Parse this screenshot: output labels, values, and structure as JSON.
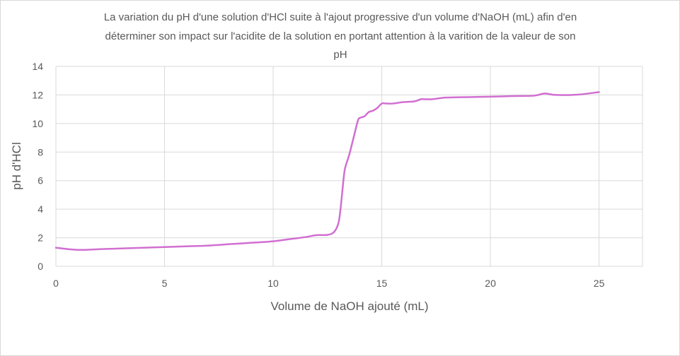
{
  "chart_data": {
    "type": "line",
    "title": [
      "La  variation du pH d'une solution d'HCl suite à l'ajout progressive d'un volume d'NaOH (mL)  afin d'en",
      "déterminer son impact sur l'acidite  de la solution en portant attention à la varition de la valeur de son",
      "pH"
    ],
    "xlabel": "Volume de NaOH ajouté (mL)",
    "ylabel": "pH  d'HCl",
    "xlim": [
      0,
      27
    ],
    "ylim": [
      0,
      14
    ],
    "x_ticks": [
      0,
      5,
      10,
      15,
      20,
      25
    ],
    "y_ticks": [
      0,
      2,
      4,
      6,
      8,
      10,
      12,
      14
    ],
    "grid": true,
    "line_color": "#d16fd1",
    "series": [
      {
        "x": [
          0,
          1,
          2,
          3,
          4,
          5,
          6,
          7,
          8,
          9,
          10,
          10.5,
          11,
          11.5,
          12,
          12.5,
          12.8,
          13,
          13.1,
          13.2,
          13.3,
          13.5,
          13.7,
          13.9,
          14,
          14.2,
          14.4,
          14.6,
          14.8,
          15,
          15.2,
          15.5,
          16,
          16.5,
          16.8,
          17,
          17.3,
          17.8,
          18,
          19,
          20,
          21,
          22,
          22.5,
          23,
          24,
          25
        ],
        "y": [
          1.3,
          1.15,
          1.2,
          1.25,
          1.3,
          1.35,
          1.4,
          1.45,
          1.55,
          1.65,
          1.75,
          1.85,
          1.95,
          2.05,
          2.18,
          2.2,
          2.4,
          3.0,
          4.0,
          5.5,
          6.8,
          7.8,
          9.0,
          10.2,
          10.4,
          10.5,
          10.8,
          10.9,
          11.1,
          11.4,
          11.4,
          11.4,
          11.5,
          11.55,
          11.7,
          11.7,
          11.7,
          11.8,
          11.82,
          11.85,
          11.88,
          11.92,
          11.95,
          12.1,
          12.0,
          12.02,
          12.2
        ]
      }
    ]
  }
}
